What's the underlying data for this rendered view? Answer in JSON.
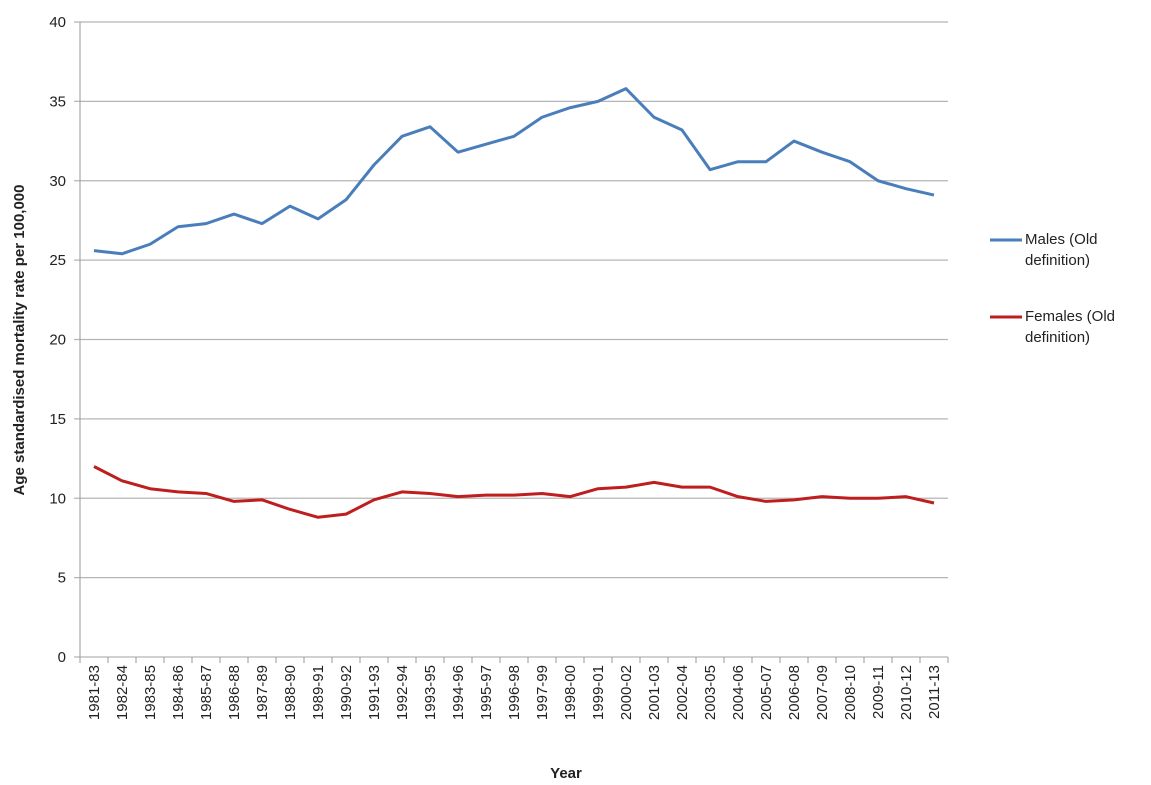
{
  "chart_data": {
    "type": "line",
    "x_label": "Year",
    "y_label": "Age standardised mortality rate per 100,000",
    "categories": [
      "1981-83",
      "1982-84",
      "1983-85",
      "1984-86",
      "1985-87",
      "1986-88",
      "1987-89",
      "1988-90",
      "1989-91",
      "1990-92",
      "1991-93",
      "1992-94",
      "1993-95",
      "1994-96",
      "1995-97",
      "1996-98",
      "1997-99",
      "1998-00",
      "1999-01",
      "2000-02",
      "2001-03",
      "2002-04",
      "2003-05",
      "2004-06",
      "2005-07",
      "2006-08",
      "2007-09",
      "2008-10",
      "2009-11",
      "2010-12",
      "2011-13"
    ],
    "series": [
      {
        "name": "Males (Old definition)",
        "color": "#4a7ebb",
        "values": [
          25.6,
          25.4,
          26.0,
          27.1,
          27.3,
          27.9,
          27.3,
          28.4,
          27.6,
          28.8,
          31.0,
          32.8,
          33.4,
          31.8,
          32.3,
          32.8,
          34.0,
          34.6,
          35.0,
          35.8,
          34.0,
          33.2,
          30.7,
          31.2,
          31.2,
          32.5,
          31.8,
          31.2,
          30.0,
          29.5,
          29.1
        ]
      },
      {
        "name": "Females (Old definition)",
        "color": "#be1e1e",
        "values": [
          12.0,
          11.1,
          10.6,
          10.4,
          10.3,
          9.8,
          9.9,
          9.3,
          8.8,
          9.0,
          9.9,
          10.4,
          10.3,
          10.1,
          10.2,
          10.2,
          10.3,
          10.1,
          10.6,
          10.7,
          11.0,
          10.7,
          10.7,
          10.1,
          9.8,
          9.9,
          10.1,
          10.0,
          10.0,
          10.1,
          9.7
        ]
      }
    ],
    "ylim": [
      0,
      40
    ],
    "yticks": [
      0,
      5,
      10,
      15,
      20,
      25,
      30,
      35,
      40
    ],
    "grid": true,
    "legend": "right"
  }
}
